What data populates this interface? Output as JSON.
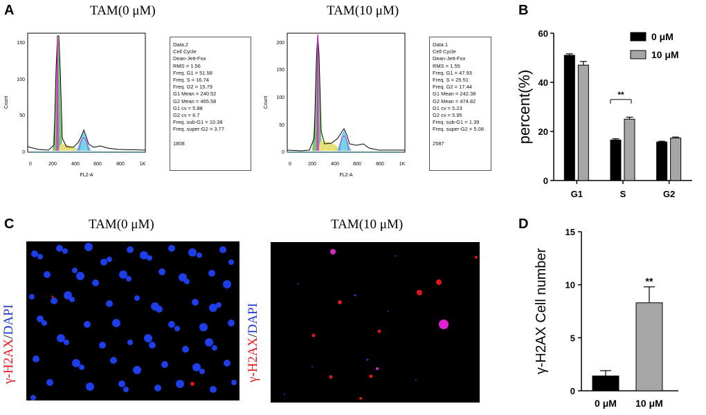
{
  "panels": {
    "A": "A",
    "B": "B",
    "C": "C",
    "D": "D"
  },
  "panel_a": {
    "titles": [
      "TAM(0 μM)",
      "TAM(10 μM)"
    ],
    "plots": [
      {
        "y_label": "Count",
        "x_label": "FL2-A",
        "y_ticks": [
          "0",
          "50",
          "100",
          "150"
        ],
        "x_ticks": [
          "0",
          "200",
          "400",
          "600",
          "800",
          "1K"
        ],
        "stats": [
          "Data.2",
          "Cell Cycle",
          "Dean-Jett-Fox",
          "RMS  = 1.56",
          "Freq. G1  = 51.58",
          "Freq. S = 16.74",
          "Freq. G2  = 15.79",
          "G1 Mean  = 240.52",
          "G2 Mean  = 465.58",
          "G1 cv  = 5.88",
          "G2 cv  = 6.7",
          "Freq. sub-G1  = 10.38",
          "Freq. super-G2 = 3.77",
          "",
          "1808"
        ]
      },
      {
        "y_label": "Count",
        "x_label": "FL2-A",
        "y_ticks": [
          "0",
          "50",
          "100",
          "150",
          "200"
        ],
        "x_ticks": [
          "0",
          "200",
          "400",
          "600",
          "800",
          "1K"
        ],
        "stats": [
          "Data.1",
          "Cell Cycle",
          "Dean-Jett-Fox",
          "RMS  = 1.55",
          "Freq. G1  = 47.93",
          "Freq. S = 25.51",
          "Freq. G2  = 17.44",
          "G1 Mean  = 242.38",
          "G2 Mean  = 474.82",
          "G1 cv  = 5.23",
          "G2 cv  = 5.95",
          "Freq. sub-G1  = 1.39",
          "Freq. super-G2 = 5.08",
          "",
          "2587"
        ]
      }
    ]
  },
  "panel_c": {
    "titles": [
      "TAM(0 μM)",
      "TAM(10 μM)"
    ],
    "stain_red": "γ-H2AX",
    "stain_sep": "/",
    "stain_blue": "DAPI",
    "colors": {
      "red": "#e0161b",
      "blue": "#1b35d6"
    }
  },
  "chart_data": [
    {
      "type": "bar",
      "panel": "B",
      "categories": [
        "G1",
        "S",
        "G2"
      ],
      "series": [
        {
          "name": "0 μM",
          "values": [
            51,
            16.5,
            15.7
          ],
          "errors": [
            0.6,
            0.5,
            0.3
          ],
          "color": "#000000"
        },
        {
          "name": "10 μM",
          "values": [
            47,
            25,
            17.3
          ],
          "errors": [
            1.5,
            0.8,
            0.4
          ],
          "color": "#a6a6a6"
        }
      ],
      "ylabel": "percent(%)",
      "ylim": [
        0,
        60
      ],
      "yticks": [
        "0",
        "20",
        "40",
        "60"
      ],
      "annotation": "**",
      "legend_position": "top-right"
    },
    {
      "type": "bar",
      "panel": "D",
      "categories": [
        "0 μM",
        "10 μM"
      ],
      "values": [
        1.4,
        8.3
      ],
      "errors": [
        0.5,
        1.5
      ],
      "colors": [
        "#000000",
        "#a6a6a6"
      ],
      "ylabel": "γ-H2AX Cell number",
      "ylim": [
        0,
        15
      ],
      "yticks": [
        "0",
        "5",
        "10",
        "15"
      ],
      "annotation": "**"
    }
  ]
}
